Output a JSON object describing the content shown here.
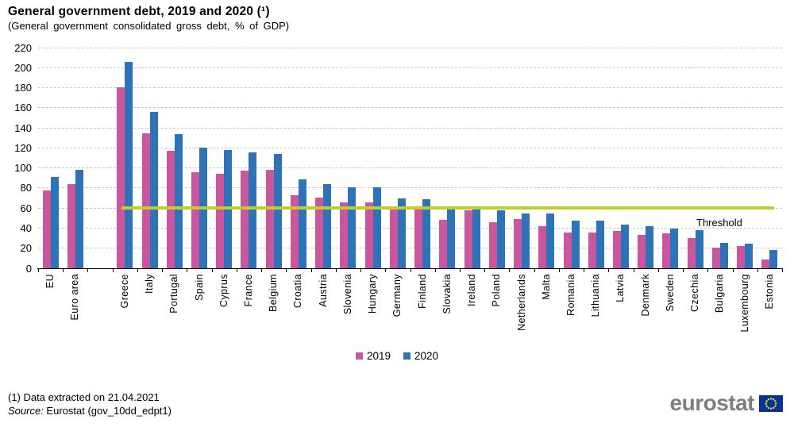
{
  "title": "General government debt, 2019 and 2020 (¹)",
  "subtitle": "(General  government  consolidated gross debt, % of GDP)",
  "legend": {
    "items": [
      {
        "label": "2019",
        "color": "#ca579e"
      },
      {
        "label": "2020",
        "color": "#2e73b8"
      }
    ]
  },
  "footer": {
    "note": "(1) Data extracted on 21.04.2021",
    "source_label": "Source:",
    "source_value": " Eurostat (gov_10dd_edpt1)"
  },
  "branding": {
    "logo_text": "eurostat",
    "flag_field_color": "#003399",
    "flag_star_color": "#ffcc00",
    "logo_text_color": "#7c7e80"
  },
  "chart_data": {
    "type": "bar",
    "title": "General government debt, 2019 and 2020 (¹)",
    "subtitle": "(General government consolidated gross debt, % of GDP)",
    "xlabel": "",
    "ylabel": "% of GDP",
    "ylim": [
      0,
      220
    ],
    "ytick_step": 20,
    "grid": true,
    "grid_color": "#c7c7c7",
    "legend_position": "bottom",
    "gap_after_category": "Euro area",
    "categories": [
      "EU",
      "Euro area",
      "Greece",
      "Italy",
      "Portugal",
      "Spain",
      "Cyprus",
      "France",
      "Belgium",
      "Croatia",
      "Austria",
      "Slovenia",
      "Hungary",
      "Germany",
      "Finland",
      "Slovakia",
      "Ireland",
      "Poland",
      "Netherlands",
      "Malta",
      "Romania",
      "Lithuania",
      "Latvia",
      "Denmark",
      "Sweden",
      "Czechia",
      "Bulgaria",
      "Luxembourg",
      "Estonia"
    ],
    "series": [
      {
        "name": "2019",
        "color": "#ca579e",
        "values": [
          77.5,
          83.9,
          180.5,
          134.6,
          116.8,
          95.5,
          94.0,
          97.6,
          98.1,
          72.8,
          70.5,
          65.6,
          65.4,
          59.7,
          59.5,
          48.2,
          57.4,
          45.6,
          48.7,
          42.0,
          35.3,
          35.9,
          37.0,
          33.3,
          35.0,
          30.3,
          20.2,
          22.0,
          8.4
        ]
      },
      {
        "name": "2020",
        "color": "#2e73b8",
        "values": [
          90.7,
          98.0,
          205.6,
          155.8,
          133.6,
          120.0,
          118.2,
          115.7,
          114.1,
          88.7,
          83.9,
          80.8,
          80.4,
          69.8,
          69.2,
          60.6,
          59.5,
          57.5,
          54.5,
          54.3,
          47.3,
          47.3,
          43.5,
          42.2,
          39.9,
          38.1,
          25.0,
          24.9,
          18.2
        ]
      }
    ],
    "threshold": {
      "value": 60,
      "label": "Threshold",
      "color": "#bfce2e"
    }
  }
}
